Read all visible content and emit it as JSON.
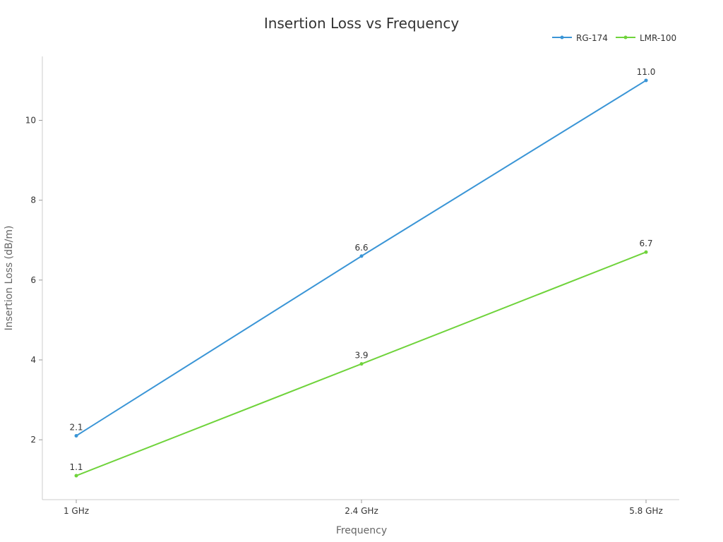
{
  "chart_data": {
    "type": "line",
    "title": "Insertion Loss vs Frequency",
    "xlabel": "Frequency",
    "ylabel": "Insertion Loss (dB/m)",
    "categories": [
      "1 GHz",
      "2.4 GHz",
      "5.8 GHz"
    ],
    "ylim": [
      0.5,
      11.6
    ],
    "yticks": [
      2,
      4,
      6,
      8,
      10
    ],
    "grid": false,
    "legend_position": "top-right",
    "series": [
      {
        "name": "RG-174",
        "color": "#3a95d6",
        "values": [
          2.1,
          6.6,
          11.0
        ],
        "labels": [
          "2.1",
          "6.6",
          "11.0"
        ]
      },
      {
        "name": "LMR-100",
        "color": "#6fd33b",
        "values": [
          1.1,
          3.9,
          6.7
        ],
        "labels": [
          "1.1",
          "3.9",
          "6.7"
        ]
      }
    ]
  }
}
